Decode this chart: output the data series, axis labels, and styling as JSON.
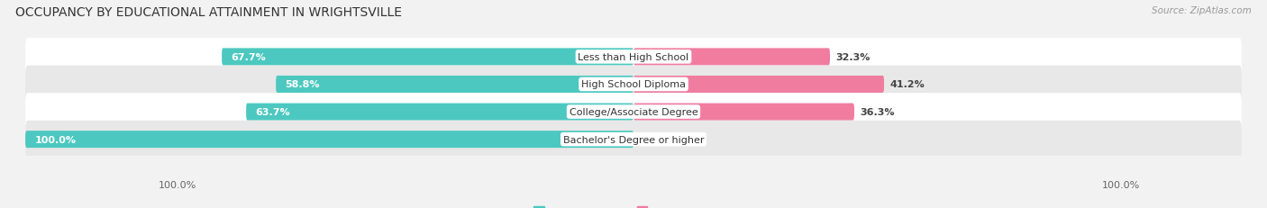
{
  "title": "OCCUPANCY BY EDUCATIONAL ATTAINMENT IN WRIGHTSVILLE",
  "source": "Source: ZipAtlas.com",
  "categories": [
    "Less than High School",
    "High School Diploma",
    "College/Associate Degree",
    "Bachelor's Degree or higher"
  ],
  "owner_pct": [
    67.7,
    58.8,
    63.7,
    100.0
  ],
  "renter_pct": [
    32.3,
    41.2,
    36.3,
    0.0
  ],
  "owner_color": "#4CC8C0",
  "renter_color": "#F07CA0",
  "renter_color_light": "#F5AABF",
  "bg_color": "#f2f2f2",
  "row_bg_light": "#ffffff",
  "row_bg_dark": "#e8e8e8",
  "title_fontsize": 10,
  "label_fontsize": 8,
  "bar_label_fontsize": 8,
  "legend_fontsize": 8,
  "source_fontsize": 7.5,
  "x_left_label": "100.0%",
  "x_right_label": "100.0%"
}
